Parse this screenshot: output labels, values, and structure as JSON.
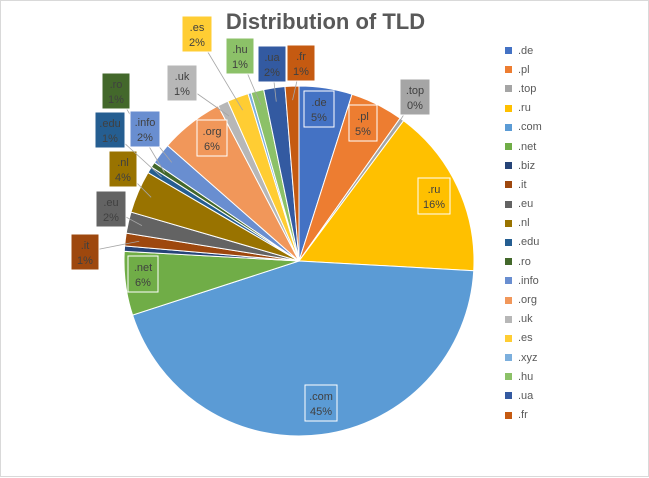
{
  "chart_data": {
    "type": "pie",
    "title": "Distribution of TLD",
    "categories": [
      ".de",
      ".pl",
      ".top",
      ".ru",
      ".com",
      ".net",
      ".biz",
      ".it",
      ".eu",
      ".nl",
      ".edu",
      ".ro",
      ".info",
      ".org",
      ".uk",
      ".es",
      ".xyz",
      ".hu",
      ".ua",
      ".fr"
    ],
    "values": [
      5.0,
      5.0,
      0.4,
      16.0,
      45.0,
      6.0,
      0.5,
      1.2,
      2.0,
      4.0,
      0.6,
      0.5,
      2.0,
      6.0,
      1.0,
      2.0,
      0.3,
      1.2,
      2.0,
      1.3
    ],
    "labels": [
      "5%",
      "5%",
      "0%",
      "16%",
      "45%",
      "6%",
      "",
      "1%",
      "2%",
      "4%",
      "1%",
      "1%",
      "2%",
      "6%",
      "1%",
      "2%",
      "",
      "1%",
      "2%",
      "1%"
    ],
    "colors": [
      "#4472c4",
      "#ed7d31",
      "#a5a5a5",
      "#ffc000",
      "#5b9bd5",
      "#70ad47",
      "#264478",
      "#9e480e",
      "#636363",
      "#997300",
      "#255e91",
      "#43682b",
      "#698ed0",
      "#f1975a",
      "#b7b7b7",
      "#ffcd33",
      "#7cafdd",
      "#8cc168",
      "#335aa1",
      "#c55a11"
    ],
    "legend_position": "right",
    "start_angle_deg": 0,
    "direction": "clockwise"
  }
}
